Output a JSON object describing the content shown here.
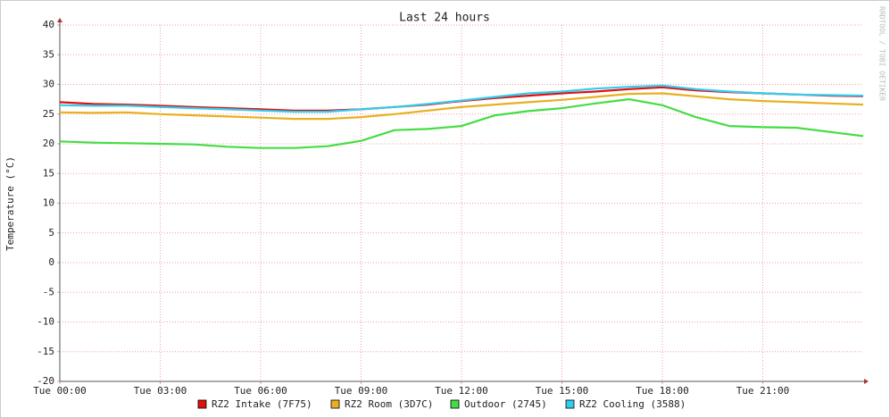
{
  "chart_data": {
    "type": "line",
    "title": "Last 24 hours",
    "y_label": "Temperature (°C)",
    "watermark": "RRDTOOL / TOBI OETIKER",
    "xlim": [
      0,
      24
    ],
    "xticks": [
      {
        "value": 0,
        "label": "Tue 00:00"
      },
      {
        "value": 3,
        "label": "Tue 03:00"
      },
      {
        "value": 6,
        "label": "Tue 06:00"
      },
      {
        "value": 9,
        "label": "Tue 09:00"
      },
      {
        "value": 12,
        "label": "Tue 12:00"
      },
      {
        "value": 15,
        "label": "Tue 15:00"
      },
      {
        "value": 18,
        "label": "Tue 18:00"
      },
      {
        "value": 21,
        "label": "Tue 21:00"
      }
    ],
    "ylim": [
      -20,
      40
    ],
    "yticks": [
      -20,
      -15,
      -10,
      -5,
      0,
      5,
      10,
      15,
      20,
      25,
      30,
      35,
      40
    ],
    "grid": true,
    "x": [
      0,
      1,
      2,
      3,
      4,
      5,
      6,
      7,
      8,
      9,
      10,
      11,
      12,
      13,
      14,
      15,
      16,
      17,
      18,
      19,
      20,
      21,
      22,
      23,
      24
    ],
    "series": [
      {
        "name": "RZ2 Intake (7F75)",
        "color": "#e01010",
        "values": [
          27,
          26.7,
          26.6,
          26.4,
          26.2,
          26,
          25.8,
          25.6,
          25.6,
          25.8,
          26.2,
          26.6,
          27.2,
          27.7,
          28.1,
          28.5,
          28.8,
          29.2,
          29.5,
          29,
          28.7,
          28.5,
          28.3,
          28.1,
          28
        ]
      },
      {
        "name": "RZ2 Room (3D7C)",
        "color": "#e8b020",
        "values": [
          25.3,
          25.2,
          25.3,
          25,
          24.8,
          24.6,
          24.4,
          24.2,
          24.2,
          24.5,
          25,
          25.6,
          26.2,
          26.6,
          27,
          27.4,
          27.9,
          28.4,
          28.5,
          28,
          27.5,
          27.2,
          27,
          26.8,
          26.6
        ]
      },
      {
        "name": "Outdoor (2745)",
        "color": "#44dd44",
        "values": [
          20.4,
          20.2,
          20.1,
          20,
          19.9,
          19.5,
          19.3,
          19.3,
          19.6,
          20.5,
          22.3,
          22.5,
          23,
          24.8,
          25.5,
          26,
          26.8,
          27.5,
          26.5,
          24.5,
          23,
          22.8,
          22.7,
          22,
          21.3
        ]
      },
      {
        "name": "RZ2 Cooling (3588)",
        "color": "#33ccee",
        "values": [
          26.5,
          26.4,
          26.4,
          26.2,
          26,
          25.8,
          25.6,
          25.4,
          25.4,
          25.8,
          26.2,
          26.7,
          27.3,
          27.9,
          28.5,
          28.8,
          29.3,
          29.6,
          29.8,
          29.2,
          28.8,
          28.5,
          28.3,
          28.2,
          28.1
        ]
      }
    ]
  }
}
